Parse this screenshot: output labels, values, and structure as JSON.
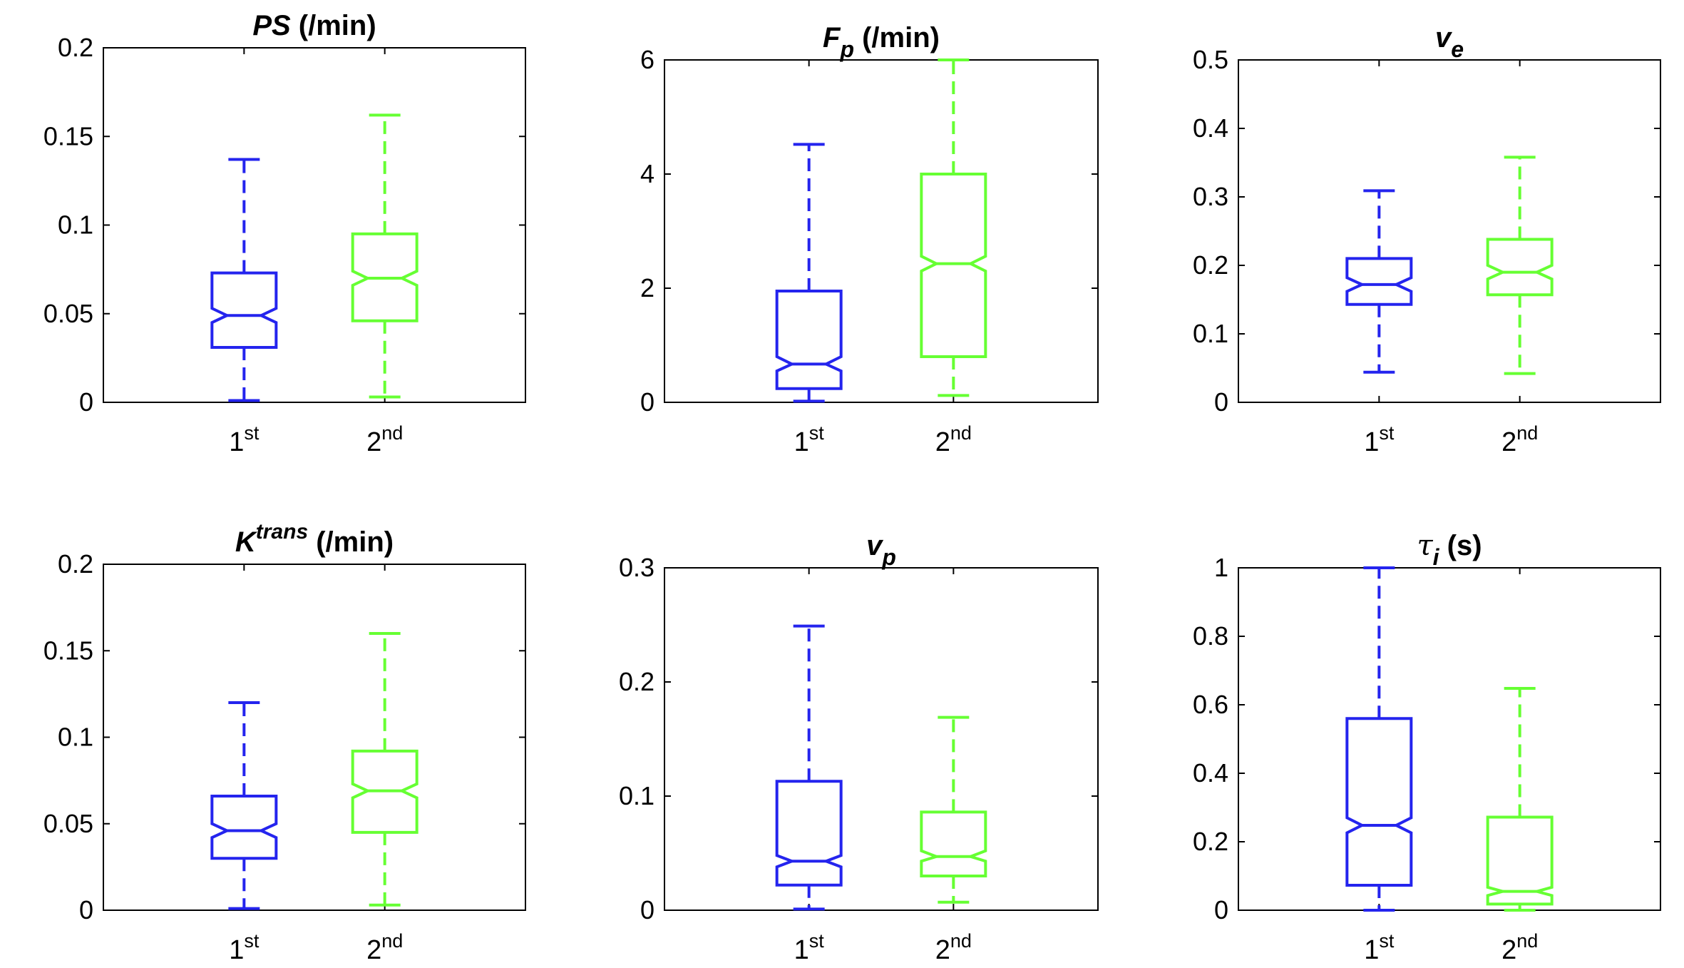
{
  "figure": {
    "colors": {
      "first": "#2424ee",
      "second": "#66ff33"
    }
  },
  "chart_data": [
    {
      "type": "box",
      "title": {
        "main": "PS",
        "sub": "",
        "sup": "",
        "unit": " (/min)",
        "main_italic": true
      },
      "categories": [
        {
          "base": "1",
          "sup": "st"
        },
        {
          "base": "2",
          "sup": "nd"
        }
      ],
      "ylim": [
        0,
        0.2
      ],
      "yticks": [
        0,
        0.05,
        0.1,
        0.15,
        0.2
      ],
      "ytick_labels": [
        "0",
        "0.05",
        "0.1",
        "0.15",
        "0.2"
      ],
      "series": [
        {
          "name": "1st",
          "min": 0.001,
          "q1": 0.031,
          "median": 0.049,
          "q3": 0.073,
          "max": 0.137,
          "notch_lo": 0.045,
          "notch_hi": 0.053
        },
        {
          "name": "2nd",
          "min": 0.003,
          "q1": 0.046,
          "median": 0.07,
          "q3": 0.095,
          "max": 0.162,
          "notch_lo": 0.066,
          "notch_hi": 0.074
        }
      ]
    },
    {
      "type": "box",
      "title": {
        "main": "F",
        "sub": "p",
        "sup": "",
        "unit": " (/min)",
        "main_italic": true
      },
      "categories": [
        {
          "base": "1",
          "sup": "st"
        },
        {
          "base": "2",
          "sup": "nd"
        }
      ],
      "ylim": [
        0,
        6
      ],
      "yticks": [
        0,
        2,
        4,
        6
      ],
      "ytick_labels": [
        "0",
        "2",
        "4",
        "6"
      ],
      "series": [
        {
          "name": "1st",
          "min": 0.02,
          "q1": 0.24,
          "median": 0.67,
          "q3": 1.95,
          "max": 4.52,
          "notch_lo": 0.55,
          "notch_hi": 0.8
        },
        {
          "name": "2nd",
          "min": 0.12,
          "q1": 0.8,
          "median": 2.43,
          "q3": 4.0,
          "max": 6.0,
          "notch_lo": 2.3,
          "notch_hi": 2.56
        }
      ]
    },
    {
      "type": "box",
      "title": {
        "main": "v",
        "sub": "e",
        "sup": "",
        "unit": "",
        "main_italic": true
      },
      "categories": [
        {
          "base": "1",
          "sup": "st"
        },
        {
          "base": "2",
          "sup": "nd"
        }
      ],
      "ylim": [
        0,
        0.5
      ],
      "yticks": [
        0,
        0.1,
        0.2,
        0.3,
        0.4,
        0.5
      ],
      "ytick_labels": [
        "0",
        "0.1",
        "0.2",
        "0.3",
        "0.4",
        "0.5"
      ],
      "series": [
        {
          "name": "1st",
          "min": 0.044,
          "q1": 0.143,
          "median": 0.172,
          "q3": 0.21,
          "max": 0.309,
          "notch_lo": 0.162,
          "notch_hi": 0.182
        },
        {
          "name": "2nd",
          "min": 0.042,
          "q1": 0.157,
          "median": 0.19,
          "q3": 0.238,
          "max": 0.358,
          "notch_lo": 0.18,
          "notch_hi": 0.2
        }
      ]
    },
    {
      "type": "box",
      "title": {
        "main": "K",
        "sub": "",
        "sup": "trans",
        "unit": " (/min)",
        "main_italic": true
      },
      "categories": [
        {
          "base": "1",
          "sup": "st"
        },
        {
          "base": "2",
          "sup": "nd"
        }
      ],
      "ylim": [
        0,
        0.2
      ],
      "yticks": [
        0,
        0.05,
        0.1,
        0.15,
        0.2
      ],
      "ytick_labels": [
        "0",
        "0.05",
        "0.1",
        "0.15",
        "0.2"
      ],
      "series": [
        {
          "name": "1st",
          "min": 0.001,
          "q1": 0.03,
          "median": 0.046,
          "q3": 0.066,
          "max": 0.12,
          "notch_lo": 0.042,
          "notch_hi": 0.05
        },
        {
          "name": "2nd",
          "min": 0.003,
          "q1": 0.045,
          "median": 0.069,
          "q3": 0.092,
          "max": 0.16,
          "notch_lo": 0.065,
          "notch_hi": 0.073
        }
      ]
    },
    {
      "type": "box",
      "title": {
        "main": "v",
        "sub": "p",
        "sup": "",
        "unit": "",
        "main_italic": true
      },
      "categories": [
        {
          "base": "1",
          "sup": "st"
        },
        {
          "base": "2",
          "sup": "nd"
        }
      ],
      "ylim": [
        0,
        0.3
      ],
      "yticks": [
        0,
        0.1,
        0.2,
        0.3
      ],
      "ytick_labels": [
        "0",
        "0.1",
        "0.2",
        "0.3"
      ],
      "series": [
        {
          "name": "1st",
          "min": 0.001,
          "q1": 0.022,
          "median": 0.043,
          "q3": 0.113,
          "max": 0.249,
          "notch_lo": 0.038,
          "notch_hi": 0.048
        },
        {
          "name": "2nd",
          "min": 0.007,
          "q1": 0.03,
          "median": 0.047,
          "q3": 0.086,
          "max": 0.169,
          "notch_lo": 0.043,
          "notch_hi": 0.052
        }
      ]
    },
    {
      "type": "box",
      "title": {
        "main": "τ",
        "sub": "i",
        "sup": "",
        "unit": " (s)",
        "main_italic": false
      },
      "categories": [
        {
          "base": "1",
          "sup": "st"
        },
        {
          "base": "2",
          "sup": "nd"
        }
      ],
      "ylim": [
        0,
        1
      ],
      "yticks": [
        0,
        0.2,
        0.4,
        0.6,
        0.8,
        1
      ],
      "ytick_labels": [
        "0",
        "0.2",
        "0.4",
        "0.6",
        "0.8",
        "1"
      ],
      "series": [
        {
          "name": "1st",
          "min": 0.0,
          "q1": 0.073,
          "median": 0.248,
          "q3": 0.56,
          "max": 1.0,
          "notch_lo": 0.226,
          "notch_hi": 0.27
        },
        {
          "name": "2nd",
          "min": 0.0,
          "q1": 0.018,
          "median": 0.055,
          "q3": 0.272,
          "max": 0.648,
          "notch_lo": 0.043,
          "notch_hi": 0.067
        }
      ]
    }
  ]
}
